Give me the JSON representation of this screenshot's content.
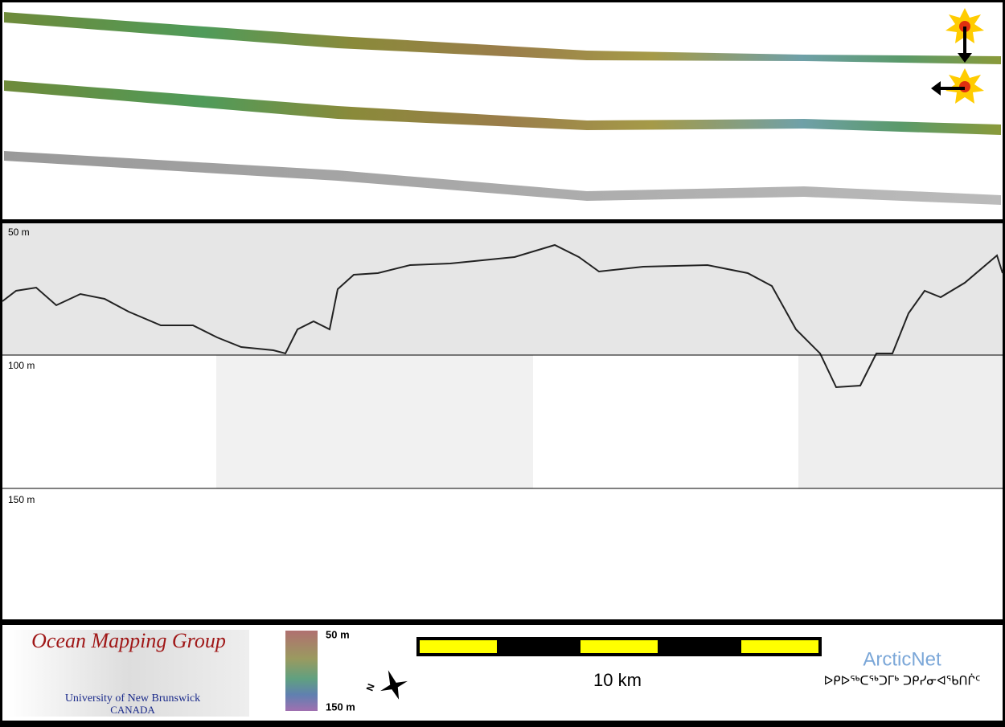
{
  "profile": {
    "depth_labels": [
      "50 m",
      "100 m",
      "150 m"
    ]
  },
  "footer": {
    "logo": {
      "title": "Ocean Mapping Group",
      "university": "University of New Brunswick",
      "country": "CANADA"
    },
    "colorbar": {
      "top": "50 m",
      "bottom": "150 m"
    },
    "compass": "N",
    "scale_bar": "10 km",
    "partner": {
      "name": "ArcticNet",
      "name_inuktitut": "ᐅᑭᐅᖅᑕᖅᑐᒥᒃ ᑐᑭᓯᓂᐊᖃᑎᒌᑦ"
    }
  }
}
